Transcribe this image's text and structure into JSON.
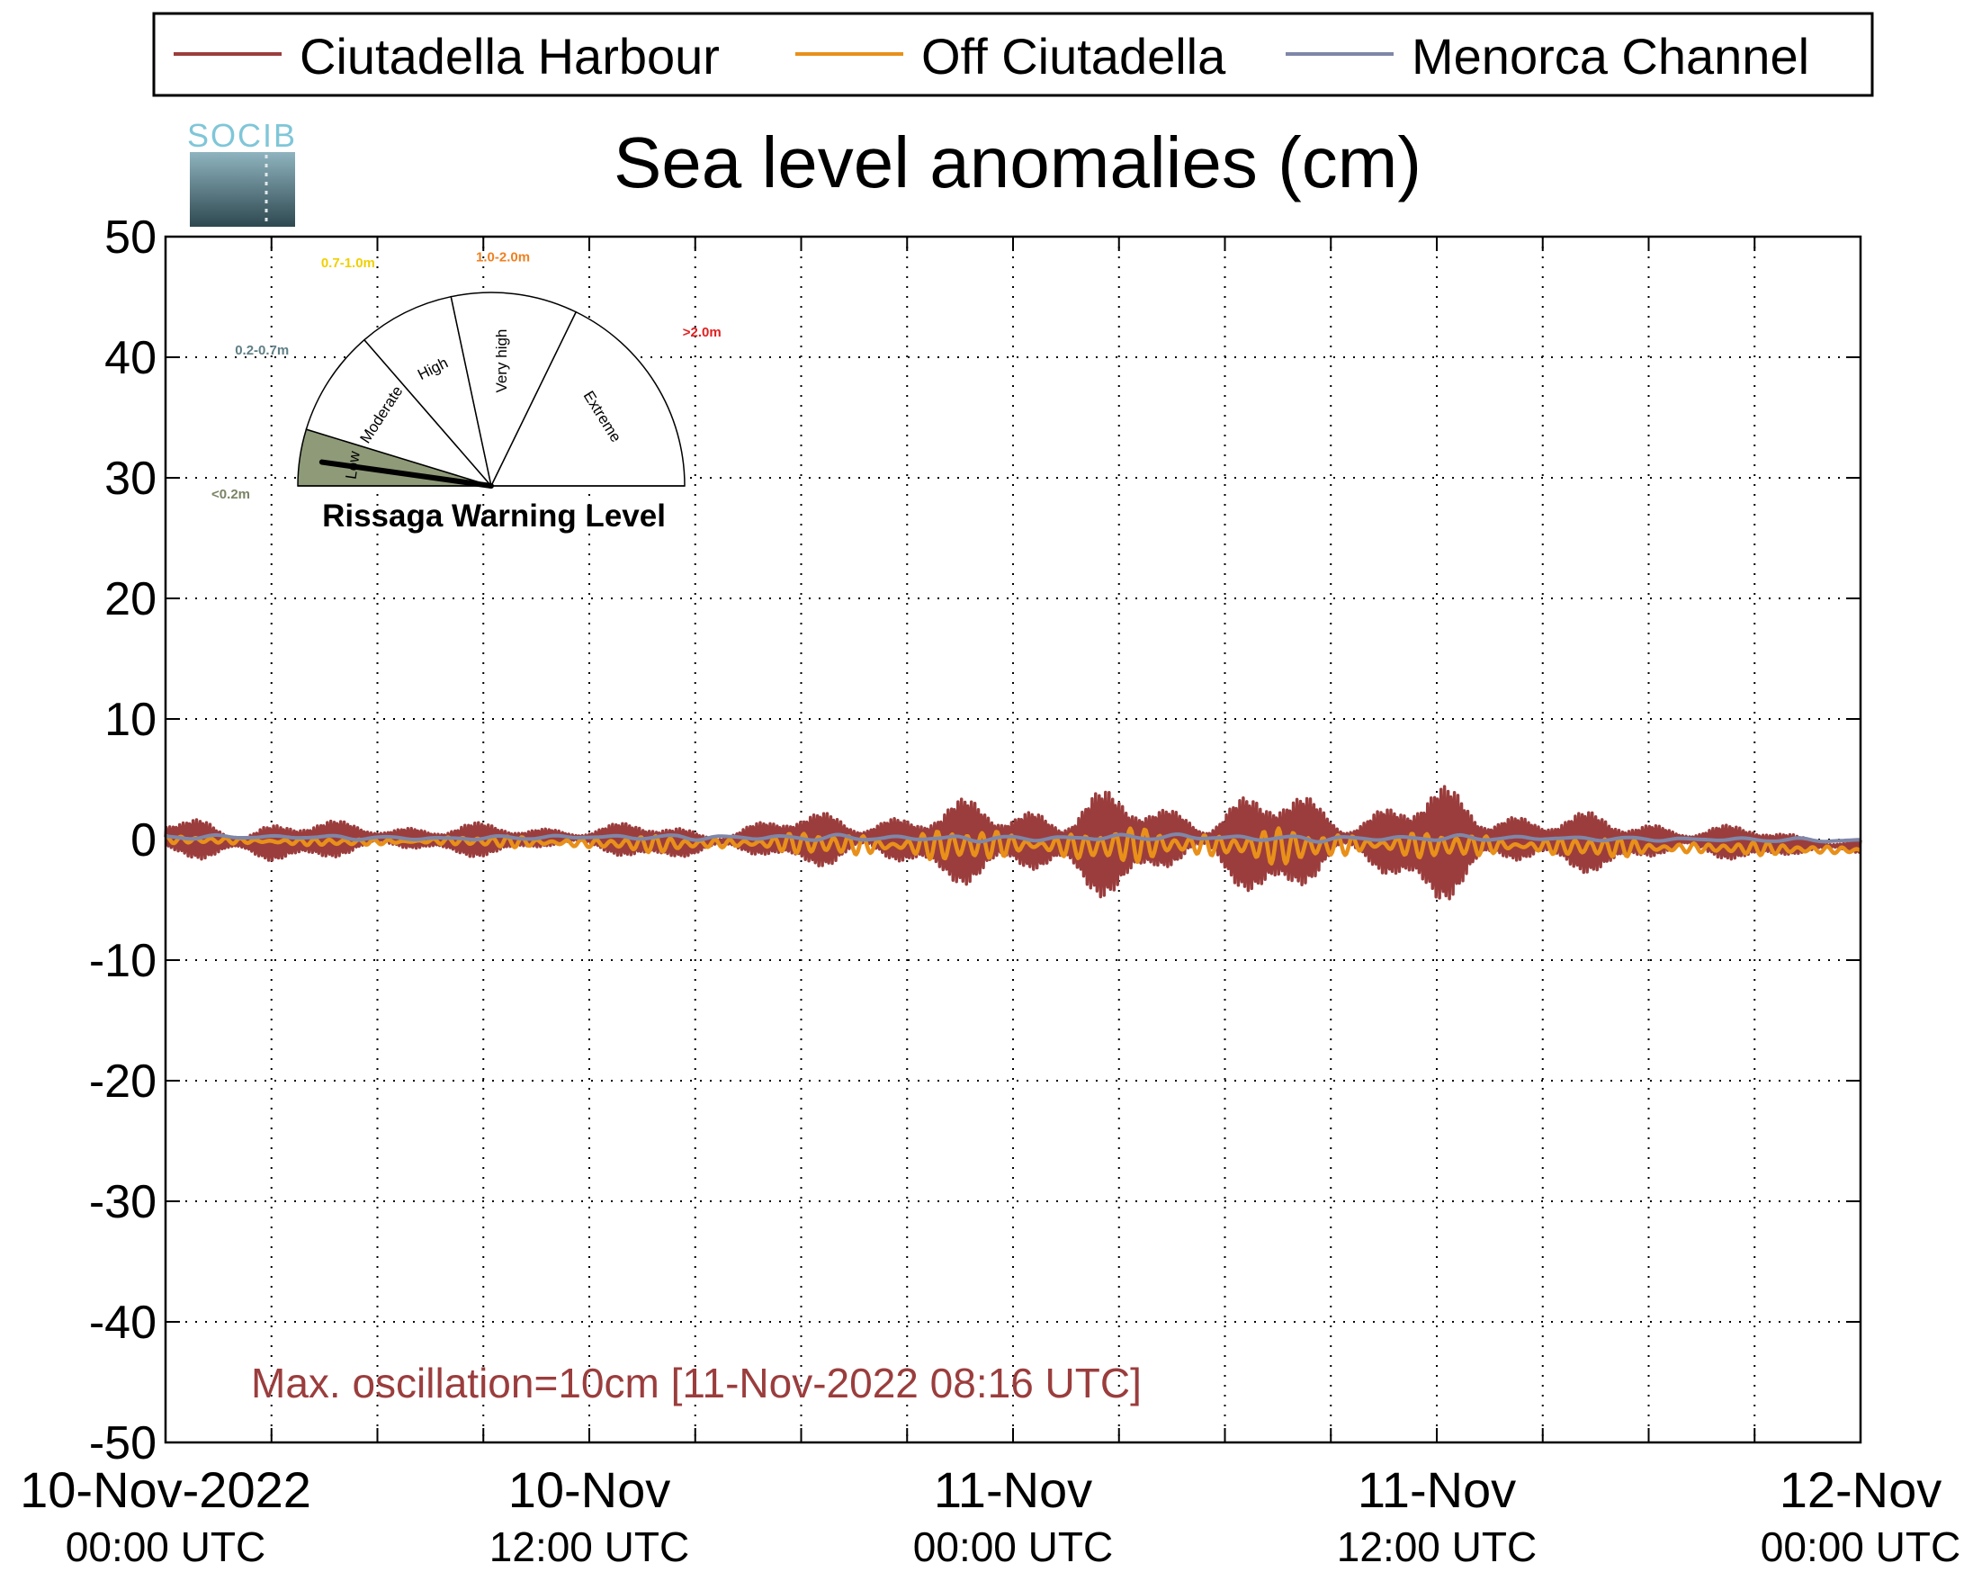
{
  "logo": {
    "text": "SOCIB"
  },
  "legend": {
    "placement": "top",
    "items": [
      {
        "label": "Ciutadella Harbour",
        "color": "#9b3d3d"
      },
      {
        "label": "Off Ciutadella",
        "color": "#e8901a"
      },
      {
        "label": "Menorca Channel",
        "color": "#7f87a8"
      }
    ]
  },
  "gauge": {
    "title": "Rissaga Warning Level",
    "needle_value": "<0.2m",
    "levels": [
      {
        "name": "Low",
        "range": "<0.2m",
        "range_color": "#7a8465",
        "fill": "#8e9a78"
      },
      {
        "name": "Moderate",
        "range": "0.2-0.7m",
        "range_color": "#5f7f86",
        "fill": "#ffffff"
      },
      {
        "name": "High",
        "range": "0.7-1.0m",
        "range_color": "#f0d000",
        "fill": "#ffffff"
      },
      {
        "name": "Very high",
        "range": "1.0-2.0m",
        "range_color": "#f08020",
        "fill": "#ffffff"
      },
      {
        "name": "Extreme",
        "range": ">2.0m",
        "range_color": "#e02020",
        "fill": "#ffffff"
      }
    ]
  },
  "annotation": {
    "text": "Max. oscillation=10cm [11-Nov-2022 08:16 UTC]",
    "color": "#9b3d3d"
  },
  "chart_data": {
    "type": "line",
    "title": "Sea level anomalies (cm)",
    "xlabel": "",
    "ylabel": "",
    "ylim": [
      -50,
      50
    ],
    "yticks": [
      50,
      40,
      30,
      20,
      10,
      0,
      -10,
      -20,
      -30,
      -40,
      -50
    ],
    "xlim": [
      "2022-11-10 00:00",
      "2022-11-12 00:00"
    ],
    "xtick_labels": [
      {
        "date": "10-Nov-2022",
        "time": "00:00 UTC"
      },
      {
        "date": "10-Nov",
        "time": "12:00 UTC"
      },
      {
        "date": "11-Nov",
        "time": "00:00 UTC"
      },
      {
        "date": "11-Nov",
        "time": "12:00 UTC"
      },
      {
        "date": "12-Nov",
        "time": "00:00 UTC"
      }
    ],
    "grid": true,
    "series": [
      {
        "name": "Ciutadella Harbour",
        "color": "#9b3d3d",
        "x_hours": [
          0,
          1,
          2,
          3,
          4,
          5,
          6,
          7,
          8,
          9,
          10,
          11,
          12,
          13,
          14,
          15,
          16,
          17,
          18,
          19,
          20,
          21,
          22,
          23,
          24,
          25,
          26,
          27,
          28,
          29,
          30,
          31,
          32,
          33,
          34,
          35,
          36,
          37,
          38,
          39,
          40,
          41,
          42,
          43,
          44,
          45,
          46,
          47,
          48
        ],
        "amplitude_cm": [
          1.5,
          2.0,
          2.3,
          2.2,
          1.8,
          1.5,
          1.4,
          1.5,
          1.6,
          1.4,
          1.3,
          1.2,
          1.3,
          1.5,
          1.6,
          1.5,
          1.6,
          1.8,
          2.2,
          2.6,
          2.8,
          3.0,
          3.3,
          3.8,
          4.0,
          4.5,
          4.8,
          4.4,
          3.6,
          3.5,
          4.3,
          4.8,
          4.5,
          3.8,
          3.4,
          4.6,
          5.0,
          4.6,
          3.4,
          2.8,
          2.6,
          2.4,
          2.2,
          1.8,
          1.6,
          1.4,
          1.1,
          0.9,
          0.8
        ],
        "baseline_cm": [
          0.2,
          0.0,
          -0.3,
          -0.3,
          -0.1,
          0.1,
          0.2,
          0.1,
          -0.1,
          0.0,
          0.0,
          0.2,
          0.1,
          0.0,
          -0.2,
          -0.3,
          -0.1,
          0.1,
          0.0,
          0.0,
          0.2,
          -0.1,
          -0.3,
          -0.1,
          0.0,
          -0.2,
          -0.4,
          -0.3,
          0.0,
          0.3,
          -0.2,
          -0.5,
          -0.2,
          0.2,
          0.0,
          -0.3,
          -0.4,
          -0.1,
          0.1,
          0.0,
          -0.2,
          -0.3,
          -0.1,
          0.0,
          -0.2,
          -0.3,
          -0.4,
          -0.5,
          -0.6
        ]
      },
      {
        "name": "Off Ciutadella",
        "color": "#e8901a",
        "x_hours": [
          0,
          2,
          4,
          6,
          8,
          10,
          12,
          14,
          16,
          18,
          20,
          22,
          24,
          26,
          28,
          30,
          32,
          34,
          36,
          38,
          40,
          42,
          44,
          46,
          48
        ],
        "amplitude_cm": [
          0.3,
          0.4,
          0.3,
          0.3,
          0.4,
          0.5,
          0.6,
          0.7,
          0.6,
          0.9,
          1.2,
          1.5,
          1.2,
          1.6,
          1.4,
          1.6,
          1.5,
          1.3,
          1.1,
          1.0,
          0.9,
          0.8,
          0.6,
          0.5,
          0.5
        ],
        "baseline_cm": [
          0.0,
          -0.1,
          -0.2,
          -0.2,
          -0.1,
          -0.2,
          -0.3,
          -0.4,
          -0.3,
          -0.3,
          -0.5,
          -0.5,
          -0.4,
          -0.6,
          -0.4,
          -0.5,
          -0.6,
          -0.4,
          -0.5,
          -0.5,
          -0.6,
          -0.7,
          -0.7,
          -0.8,
          -0.9
        ]
      },
      {
        "name": "Menorca Channel",
        "color": "#7f87a8",
        "x_hours": [
          0,
          4,
          8,
          12,
          16,
          20,
          24,
          28,
          32,
          36,
          40,
          44,
          48
        ],
        "amplitude_cm": [
          0.2,
          0.2,
          0.2,
          0.2,
          0.3,
          0.3,
          0.3,
          0.3,
          0.3,
          0.3,
          0.2,
          0.2,
          0.2
        ],
        "baseline_cm": [
          0.2,
          0.2,
          0.1,
          0.2,
          0.2,
          0.1,
          0.1,
          0.2,
          0.1,
          0.1,
          0.1,
          0.0,
          -0.1
        ]
      }
    ],
    "max_oscillation": {
      "value_cm": 10,
      "time": "11-Nov-2022 08:16 UTC"
    }
  }
}
